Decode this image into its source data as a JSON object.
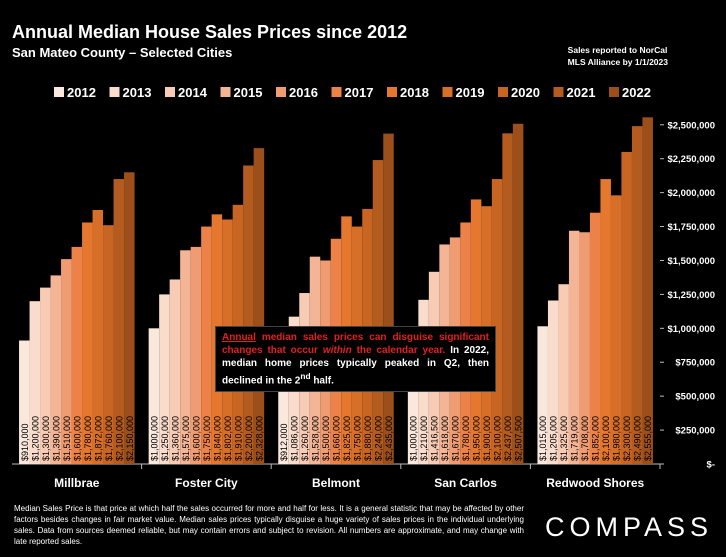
{
  "title": "Annual Median House Sales Prices since 2012",
  "subtitle": "San Mateo County – Selected Cities",
  "source_line1": "Sales reported to NorCal",
  "source_line2": "MLS Alliance by 1/1/2023",
  "callout": {
    "red_underlined": "Annual",
    "red_text_1": " median sales prices can disguise significant changes that occur ",
    "red_italic": "within",
    "red_text_2": " the calendar year.",
    "white_text_1": " In 2022, median home prices typically peaked in Q2, then declined in the 2",
    "white_sup": "nd",
    "white_text_2": " half."
  },
  "footnote": {
    "text_1": "Median Sales Price is that price at which half the sales occurred for more and half for less. It is a general statistic that may be affected by other factors besides changes in fair market value. Median sales prices typically disguise a huge variety of sales prices in the individual underlying sales. Data from sources deemed reliable, but may contain errors and subject to revision.  All numbers are approximate, and may change with late reported sales."
  },
  "logo": "COMPASS",
  "colors": {
    "background": "#000000",
    "year_colors": [
      "#fbe8dc",
      "#f9dccb",
      "#f7cbb4",
      "#f4b596",
      "#f09c72",
      "#ec8247",
      "#e5772e",
      "#d86f28",
      "#c96523",
      "#b45b1f",
      "#9c4f1b"
    ]
  },
  "chart_data": {
    "type": "bar",
    "title": "Annual Median House Sales Prices since 2012",
    "subtitle": "San Mateo County – Selected Cities",
    "categories": [
      "Millbrae",
      "Foster City",
      "Belmont",
      "San Carlos",
      "Redwood Shores"
    ],
    "series_names": [
      "2012",
      "2013",
      "2014",
      "2015",
      "2016",
      "2017",
      "2018",
      "2019",
      "2020",
      "2021",
      "2022"
    ],
    "series": [
      {
        "name": "2012",
        "values": [
          910000,
          1000000,
          912000,
          1000000,
          1015000
        ]
      },
      {
        "name": "2013",
        "values": [
          1200000,
          1250000,
          1086000,
          1210000,
          1205000
        ]
      },
      {
        "name": "2014",
        "values": [
          1300000,
          1360000,
          1260000,
          1416500,
          1325000
        ]
      },
      {
        "name": "2015",
        "values": [
          1390000,
          1575000,
          1528000,
          1618000,
          1719000
        ]
      },
      {
        "name": "2016",
        "values": [
          1510000,
          1600000,
          1500000,
          1670000,
          1708000
        ]
      },
      {
        "name": "2017",
        "values": [
          1600000,
          1750000,
          1660000,
          1780000,
          1852000
        ]
      },
      {
        "name": "2018",
        "values": [
          1780000,
          1840000,
          1825000,
          1950000,
          2100000
        ]
      },
      {
        "name": "2019",
        "values": [
          1872000,
          1802000,
          1750000,
          1900000,
          1980000
        ]
      },
      {
        "name": "2020",
        "values": [
          1760000,
          1910000,
          1880000,
          2100000,
          2300000
        ]
      },
      {
        "name": "2021",
        "values": [
          2100000,
          2200000,
          2240000,
          2437000,
          2490000
        ]
      },
      {
        "name": "2022",
        "values": [
          2150000,
          2328000,
          2435000,
          2507500,
          2555000
        ]
      }
    ],
    "value_labels": [
      [
        "$910,000",
        "$1,200,000",
        "$1,300,000",
        "$1,390,000",
        "$1,510,000",
        "$1,600,000",
        "$1,780,000",
        "$1,872,000",
        "$1,760,000",
        "$2,100,000",
        "$2,150,000"
      ],
      [
        "$1,000,000",
        "$1,250,000",
        "$1,360,000",
        "$1,575,000",
        "$1,600,000",
        "$1,750,000",
        "$1,840,000",
        "$1,802,000",
        "$1,910,000",
        "$2,200,000",
        "$2,328,000"
      ],
      [
        "$912,000",
        "$1,086,000",
        "$1,260,000",
        "$1,528,000",
        "$1,500,000",
        "$1,660,000",
        "$1,825,000",
        "$1,750,000",
        "$1,880,000",
        "$2,240,000",
        "$2,435,000"
      ],
      [
        "$1,000,000",
        "$1,210,000",
        "$1,416,500",
        "$1,618,000",
        "$1,670,000",
        "$1,780,000",
        "$1,950,000",
        "$1,900,000",
        "$2,100,000",
        "$2,437,000",
        "$2,507,500"
      ],
      [
        "$1,015,000",
        "$1,205,000",
        "$1,325,000",
        "$1,719,000",
        "$1,708,000",
        "$1,852,000",
        "$2,100,000",
        "$1,980,000",
        "$2,300,000",
        "$2,490,000",
        "$2,555,000"
      ]
    ],
    "y_ticks": [
      0,
      250000,
      500000,
      750000,
      1000000,
      1250000,
      1500000,
      1750000,
      2000000,
      2250000,
      2500000
    ],
    "y_tick_labels": [
      "$-",
      "$250,000",
      "$500,000",
      "$750,000",
      "$1,000,000",
      "$1,250,000",
      "$1,500,000",
      "$1,750,000",
      "$2,000,000",
      "$2,250,000",
      "$2,500,000"
    ],
    "ylim": [
      0,
      2550000
    ],
    "y_axis_side": "right",
    "legend_position": "top",
    "grid": false
  }
}
